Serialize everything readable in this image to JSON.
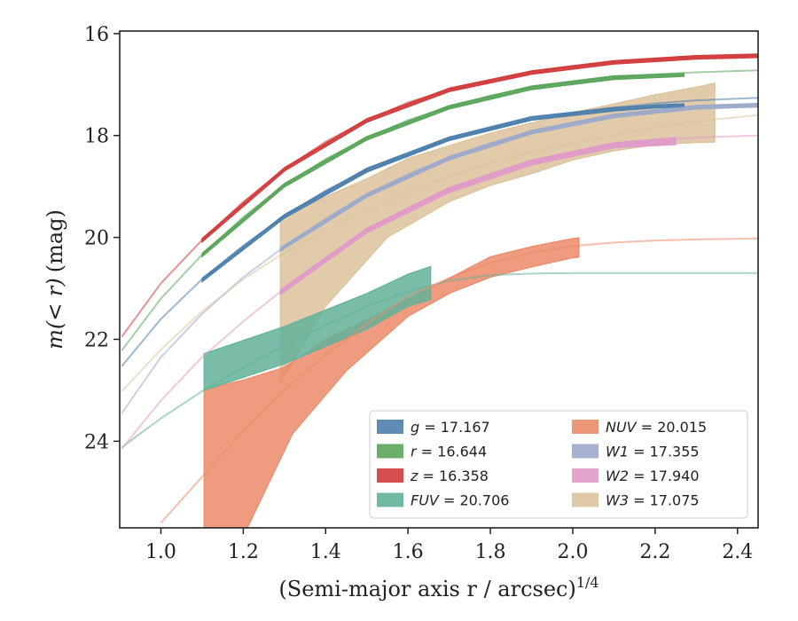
{
  "chart_data": {
    "type": "line",
    "xlabel": "(Semi-major axis r / arcsec)",
    "xlabel_superscript": "1/4",
    "ylabel_math": "m(< r)",
    "ylabel_unit": "(mag)",
    "xlim": [
      0.9,
      2.45
    ],
    "ylim": [
      25.7,
      15.95
    ],
    "y_inverted": true,
    "xticks": [
      1.0,
      1.2,
      1.4,
      1.6,
      1.8,
      2.0,
      2.2,
      2.4
    ],
    "xtick_labels": [
      "1.0",
      "1.2",
      "1.4",
      "1.6",
      "1.8",
      "2.0",
      "2.2",
      "2.4"
    ],
    "yticks": [
      16,
      18,
      20,
      22,
      24
    ],
    "ytick_labels": [
      "16",
      "18",
      "20",
      "22",
      "24"
    ],
    "grid": false,
    "legend_position": "lower-right",
    "series": [
      {
        "name": "g = 17.167",
        "symbol": "g",
        "value": "17.167",
        "color": "#4c7fad",
        "model": [
          [
            0.905,
            22.53
          ],
          [
            1.0,
            21.6
          ],
          [
            1.1,
            20.82
          ],
          [
            1.2,
            20.16
          ],
          [
            1.3,
            19.58
          ],
          [
            1.4,
            19.08
          ],
          [
            1.5,
            18.68
          ],
          [
            1.6,
            18.37
          ],
          [
            1.7,
            18.08
          ],
          [
            1.8,
            17.86
          ],
          [
            1.9,
            17.69
          ],
          [
            2.0,
            17.55
          ],
          [
            2.1,
            17.45
          ],
          [
            2.2,
            17.37
          ],
          [
            2.3,
            17.31
          ],
          [
            2.45,
            17.26
          ]
        ],
        "band_upper": [
          [
            1.1,
            20.8
          ],
          [
            1.3,
            19.55
          ],
          [
            1.5,
            18.64
          ],
          [
            1.7,
            18.03
          ],
          [
            1.9,
            17.63
          ],
          [
            2.1,
            17.45
          ],
          [
            2.2,
            17.4
          ],
          [
            2.27,
            17.38
          ]
        ],
        "band_lower": [
          [
            1.1,
            20.87
          ],
          [
            1.3,
            19.62
          ],
          [
            1.5,
            18.72
          ],
          [
            1.7,
            18.1
          ],
          [
            1.9,
            17.7
          ],
          [
            2.1,
            17.52
          ],
          [
            2.2,
            17.46
          ],
          [
            2.27,
            17.44
          ]
        ]
      },
      {
        "name": "r = 16.644",
        "symbol": "r",
        "value": "16.644",
        "color": "#5aa55a",
        "model": [
          [
            0.905,
            22.22
          ],
          [
            1.0,
            21.2
          ],
          [
            1.1,
            20.34
          ],
          [
            1.2,
            19.6
          ],
          [
            1.3,
            18.97
          ],
          [
            1.4,
            18.46
          ],
          [
            1.5,
            18.05
          ],
          [
            1.6,
            17.7
          ],
          [
            1.7,
            17.44
          ],
          [
            1.8,
            17.22
          ],
          [
            1.9,
            17.06
          ],
          [
            2.0,
            16.94
          ],
          [
            2.1,
            16.86
          ],
          [
            2.2,
            16.8
          ],
          [
            2.3,
            16.76
          ],
          [
            2.45,
            16.72
          ]
        ],
        "band_upper": [
          [
            1.1,
            20.31
          ],
          [
            1.3,
            18.94
          ],
          [
            1.5,
            18.02
          ],
          [
            1.7,
            17.41
          ],
          [
            1.9,
            17.03
          ],
          [
            2.1,
            16.83
          ],
          [
            2.27,
            16.78
          ]
        ],
        "band_lower": [
          [
            1.1,
            20.38
          ],
          [
            1.3,
            19.01
          ],
          [
            1.5,
            18.09
          ],
          [
            1.7,
            17.48
          ],
          [
            1.9,
            17.1
          ],
          [
            2.1,
            16.9
          ],
          [
            2.27,
            16.84
          ]
        ]
      },
      {
        "name": "z = 16.358",
        "symbol": "z",
        "value": "16.358",
        "color": "#d23c3c",
        "model": [
          [
            0.905,
            21.95
          ],
          [
            1.0,
            20.9
          ],
          [
            1.1,
            20.05
          ],
          [
            1.2,
            19.3
          ],
          [
            1.3,
            18.66
          ],
          [
            1.4,
            18.12
          ],
          [
            1.5,
            17.7
          ],
          [
            1.6,
            17.35
          ],
          [
            1.7,
            17.1
          ],
          [
            1.8,
            16.92
          ],
          [
            1.9,
            16.76
          ],
          [
            2.0,
            16.65
          ],
          [
            2.1,
            16.56
          ],
          [
            2.2,
            16.5
          ],
          [
            2.3,
            16.46
          ],
          [
            2.45,
            16.43
          ]
        ],
        "band_upper": [
          [
            1.1,
            20.02
          ],
          [
            1.3,
            18.63
          ],
          [
            1.5,
            17.67
          ],
          [
            1.7,
            17.07
          ],
          [
            1.9,
            16.73
          ],
          [
            2.1,
            16.53
          ],
          [
            2.3,
            16.43
          ],
          [
            2.45,
            16.4
          ]
        ],
        "band_lower": [
          [
            1.1,
            20.09
          ],
          [
            1.3,
            18.7
          ],
          [
            1.5,
            17.74
          ],
          [
            1.7,
            17.14
          ],
          [
            1.9,
            16.8
          ],
          [
            2.1,
            16.6
          ],
          [
            2.3,
            16.5
          ],
          [
            2.45,
            16.47
          ]
        ]
      },
      {
        "name": "FUV = 20.706",
        "symbol": "FUV",
        "value": "20.706",
        "color": "#62b199",
        "model": [
          [
            0.905,
            24.12
          ],
          [
            1.0,
            23.55
          ],
          [
            1.1,
            23.02
          ],
          [
            1.2,
            22.55
          ],
          [
            1.3,
            22.12
          ],
          [
            1.4,
            21.72
          ],
          [
            1.5,
            21.36
          ],
          [
            1.6,
            21.06
          ],
          [
            1.7,
            20.85
          ],
          [
            1.8,
            20.74
          ],
          [
            1.9,
            20.71
          ],
          [
            2.0,
            20.7
          ],
          [
            2.45,
            20.7
          ]
        ],
        "band_upper": [
          [
            1.105,
            22.28
          ],
          [
            1.3,
            21.75
          ],
          [
            1.5,
            21.1
          ],
          [
            1.6,
            20.72
          ],
          [
            1.655,
            20.57
          ]
        ],
        "band_lower": [
          [
            1.105,
            23.0
          ],
          [
            1.3,
            22.48
          ],
          [
            1.5,
            21.8
          ],
          [
            1.6,
            21.35
          ],
          [
            1.655,
            21.22
          ]
        ]
      },
      {
        "name": "NUV = 20.015",
        "symbol": "NUV",
        "value": "20.015",
        "color": "#eb8a68",
        "model": [
          [
            1.0,
            25.6
          ],
          [
            1.1,
            24.7
          ],
          [
            1.2,
            23.8
          ],
          [
            1.3,
            23.0
          ],
          [
            1.4,
            22.3
          ],
          [
            1.5,
            21.7
          ],
          [
            1.6,
            21.15
          ],
          [
            1.7,
            20.8
          ],
          [
            1.8,
            20.5
          ],
          [
            1.9,
            20.3
          ],
          [
            2.0,
            20.17
          ],
          [
            2.1,
            20.1
          ],
          [
            2.2,
            20.06
          ],
          [
            2.3,
            20.04
          ],
          [
            2.45,
            20.02
          ]
        ],
        "band_upper": [
          [
            1.105,
            22.98
          ],
          [
            1.2,
            22.8
          ],
          [
            1.3,
            22.55
          ],
          [
            1.4,
            22.0
          ],
          [
            1.55,
            21.42
          ],
          [
            1.7,
            20.8
          ],
          [
            1.8,
            20.38
          ],
          [
            1.9,
            20.18
          ],
          [
            2.0,
            20.02
          ],
          [
            2.015,
            20.01
          ]
        ],
        "band_lower": [
          [
            1.105,
            25.7
          ],
          [
            1.21,
            25.7
          ],
          [
            1.32,
            23.85
          ],
          [
            1.45,
            22.62
          ],
          [
            1.6,
            21.55
          ],
          [
            1.7,
            21.1
          ],
          [
            1.8,
            20.78
          ],
          [
            1.9,
            20.58
          ],
          [
            2.0,
            20.4
          ],
          [
            2.015,
            20.39
          ]
        ]
      },
      {
        "name": "W1 = 17.355",
        "symbol": "W1",
        "value": "17.355",
        "color": "#9ca9ca",
        "model": [
          [
            0.905,
            23.45
          ],
          [
            1.0,
            22.35
          ],
          [
            1.1,
            21.5
          ],
          [
            1.2,
            20.78
          ],
          [
            1.3,
            20.18
          ],
          [
            1.4,
            19.63
          ],
          [
            1.5,
            19.15
          ],
          [
            1.6,
            18.76
          ],
          [
            1.7,
            18.43
          ],
          [
            1.8,
            18.15
          ],
          [
            1.9,
            17.92
          ],
          [
            2.0,
            17.75
          ],
          [
            2.1,
            17.6
          ],
          [
            2.2,
            17.5
          ],
          [
            2.3,
            17.42
          ],
          [
            2.45,
            17.38
          ]
        ],
        "band_upper": [
          [
            1.29,
            20.2
          ],
          [
            1.5,
            19.14
          ],
          [
            1.7,
            18.41
          ],
          [
            1.9,
            17.9
          ],
          [
            2.1,
            17.58
          ],
          [
            2.3,
            17.41
          ],
          [
            2.45,
            17.37
          ]
        ],
        "band_lower": [
          [
            1.29,
            20.27
          ],
          [
            1.5,
            19.21
          ],
          [
            1.7,
            18.48
          ],
          [
            1.9,
            17.97
          ],
          [
            2.1,
            17.65
          ],
          [
            2.3,
            17.48
          ],
          [
            2.45,
            17.44
          ]
        ]
      },
      {
        "name": "W2 = 17.940",
        "symbol": "W2",
        "value": "17.940",
        "color": "#e09ac8",
        "model": [
          [
            0.905,
            24.15
          ],
          [
            1.0,
            23.2
          ],
          [
            1.1,
            22.35
          ],
          [
            1.2,
            21.65
          ],
          [
            1.3,
            21.0
          ],
          [
            1.4,
            20.4
          ],
          [
            1.5,
            19.86
          ],
          [
            1.6,
            19.42
          ],
          [
            1.7,
            19.06
          ],
          [
            1.8,
            18.76
          ],
          [
            1.9,
            18.52
          ],
          [
            2.0,
            18.34
          ],
          [
            2.1,
            18.2
          ],
          [
            2.2,
            18.1
          ],
          [
            2.3,
            18.04
          ],
          [
            2.45,
            18.0
          ]
        ],
        "band_upper": [
          [
            1.29,
            21.03
          ],
          [
            1.5,
            19.82
          ],
          [
            1.7,
            19.02
          ],
          [
            1.9,
            18.48
          ],
          [
            2.1,
            18.14
          ],
          [
            2.25,
            18.04
          ]
        ],
        "band_lower": [
          [
            1.29,
            21.12
          ],
          [
            1.5,
            19.91
          ],
          [
            1.7,
            19.12
          ],
          [
            1.9,
            18.58
          ],
          [
            2.1,
            18.24
          ],
          [
            2.25,
            18.18
          ]
        ]
      },
      {
        "name": "W3 = 17.075",
        "symbol": "W3",
        "value": "17.075",
        "color": "#dcc29c",
        "model": [
          [
            0.905,
            23.02
          ],
          [
            1.0,
            22.2
          ],
          [
            1.1,
            21.45
          ],
          [
            1.2,
            20.82
          ],
          [
            1.3,
            20.3
          ],
          [
            1.4,
            19.86
          ],
          [
            1.5,
            19.47
          ],
          [
            1.6,
            19.1
          ],
          [
            1.7,
            18.8
          ],
          [
            1.8,
            18.54
          ],
          [
            1.9,
            18.33
          ],
          [
            2.0,
            18.15
          ],
          [
            2.1,
            18.0
          ],
          [
            2.2,
            17.85
          ],
          [
            2.3,
            17.72
          ],
          [
            2.45,
            17.6
          ]
        ],
        "band_upper": [
          [
            1.29,
            19.63
          ],
          [
            1.4,
            19.2
          ],
          [
            1.5,
            18.85
          ],
          [
            1.6,
            18.45
          ],
          [
            1.7,
            18.2
          ],
          [
            1.8,
            17.95
          ],
          [
            1.9,
            17.75
          ],
          [
            2.0,
            17.55
          ],
          [
            2.1,
            17.38
          ],
          [
            2.2,
            17.2
          ],
          [
            2.3,
            17.05
          ],
          [
            2.345,
            16.97
          ]
        ],
        "band_lower": [
          [
            1.29,
            22.87
          ],
          [
            1.4,
            21.35
          ],
          [
            1.55,
            20.0
          ],
          [
            1.7,
            19.3
          ],
          [
            1.8,
            18.98
          ],
          [
            1.9,
            18.75
          ],
          [
            2.0,
            18.48
          ],
          [
            2.1,
            18.3
          ],
          [
            2.2,
            18.18
          ],
          [
            2.3,
            18.14
          ],
          [
            2.345,
            18.13
          ]
        ]
      }
    ]
  }
}
